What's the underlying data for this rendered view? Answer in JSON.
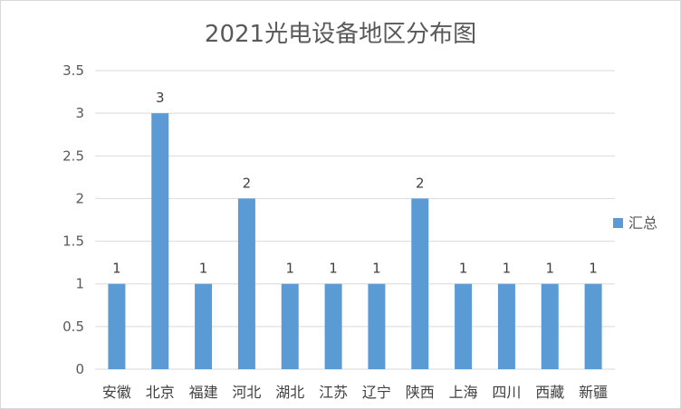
{
  "chart_data": {
    "type": "bar",
    "title": "2021光电设备地区分布图",
    "categories": [
      "安徽",
      "北京",
      "福建",
      "河北",
      "湖北",
      "江苏",
      "辽宁",
      "陕西",
      "上海",
      "四川",
      "西藏",
      "新疆"
    ],
    "series": [
      {
        "name": "汇总",
        "values": [
          1,
          3,
          1,
          2,
          1,
          1,
          1,
          2,
          1,
          1,
          1,
          1
        ],
        "color": "#5b9bd5"
      }
    ],
    "ylim": [
      0,
      3.5
    ],
    "yticks": [
      "0",
      "0.5",
      "1",
      "1.5",
      "2",
      "2.5",
      "3",
      "3.5"
    ],
    "grid": true,
    "legend_position": "right",
    "data_labels": true
  }
}
